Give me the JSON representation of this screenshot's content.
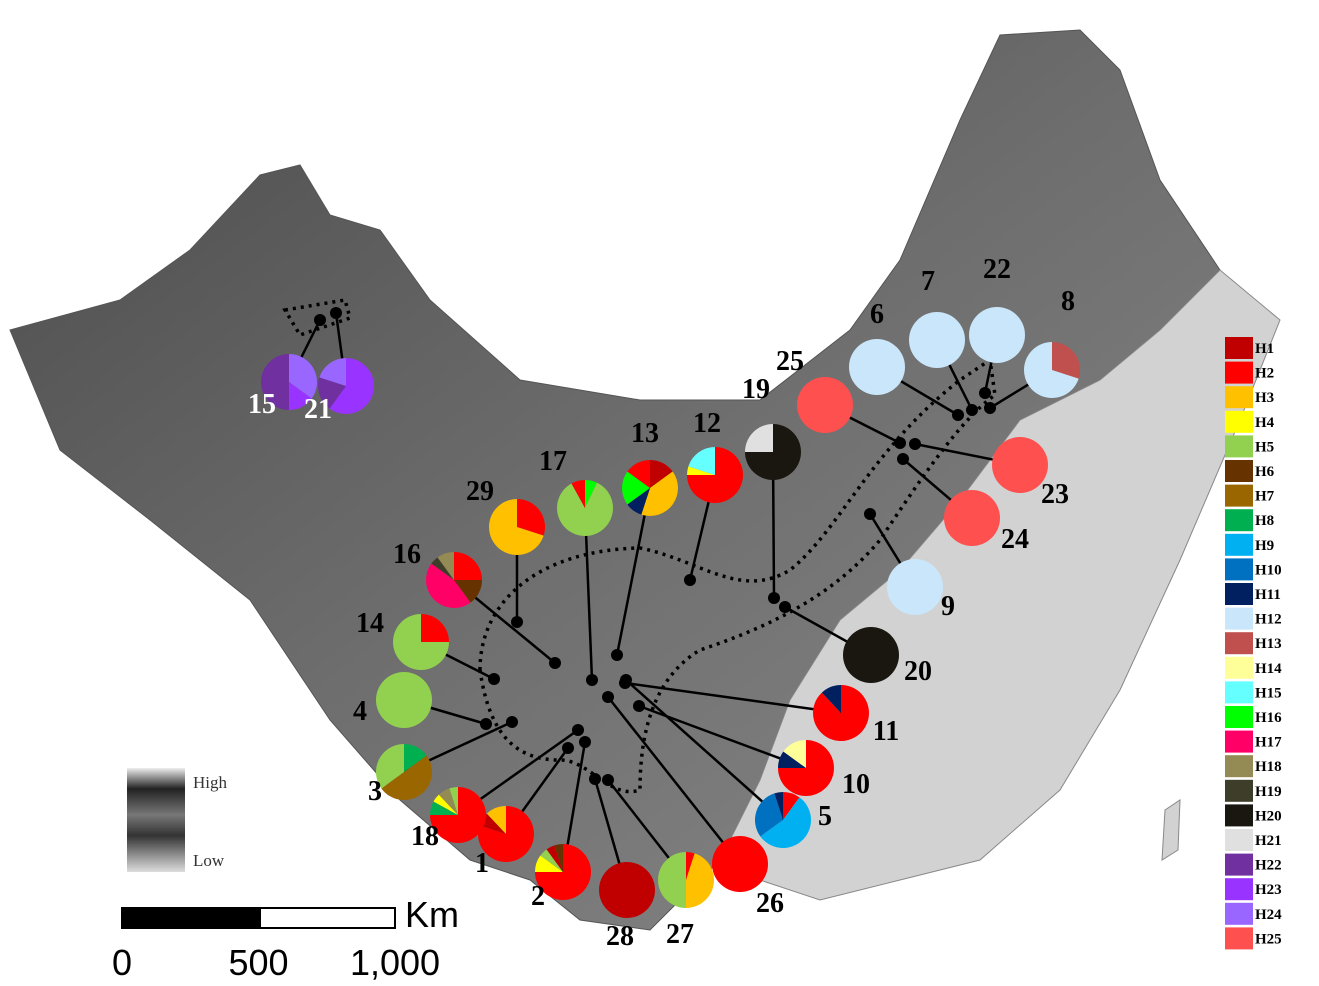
{
  "legend": [
    {
      "label": "H1",
      "color": "#c00000"
    },
    {
      "label": "H2",
      "color": "#ff0000"
    },
    {
      "label": "H3",
      "color": "#ffc000"
    },
    {
      "label": "H4",
      "color": "#ffff00"
    },
    {
      "label": "H5",
      "color": "#92d050"
    },
    {
      "label": "H6",
      "color": "#663300"
    },
    {
      "label": "H7",
      "color": "#996600"
    },
    {
      "label": "H8",
      "color": "#00b050"
    },
    {
      "label": "H9",
      "color": "#00b0f0"
    },
    {
      "label": "H10",
      "color": "#0070c0"
    },
    {
      "label": "H11",
      "color": "#002060"
    },
    {
      "label": "H12",
      "color": "#c9e6fa"
    },
    {
      "label": "H13",
      "color": "#c0504d"
    },
    {
      "label": "H14",
      "color": "#ffff99"
    },
    {
      "label": "H15",
      "color": "#66ffff"
    },
    {
      "label": "H16",
      "color": "#00ff00"
    },
    {
      "label": "H17",
      "color": "#ff0066"
    },
    {
      "label": "H18",
      "color": "#948a54"
    },
    {
      "label": "H19",
      "color": "#3d3d29"
    },
    {
      "label": "H20",
      "color": "#1a1711"
    },
    {
      "label": "H21",
      "color": "#e0e0e0"
    },
    {
      "label": "H22",
      "color": "#7030a0"
    },
    {
      "label": "H23",
      "color": "#9933ff"
    },
    {
      "label": "H24",
      "color": "#9966ff"
    },
    {
      "label": "H25",
      "color": "#ff5050"
    }
  ],
  "populations": [
    {
      "label": "1",
      "segments": [
        {
          "haplotype": "H2",
          "share": 80
        },
        {
          "haplotype": "H1",
          "share": 8
        },
        {
          "haplotype": "H3",
          "share": 12
        }
      ]
    },
    {
      "label": "2",
      "segments": [
        {
          "haplotype": "H2",
          "share": 75
        },
        {
          "haplotype": "H4",
          "share": 10
        },
        {
          "haplotype": "H5",
          "share": 5
        },
        {
          "haplotype": "H1",
          "share": 5
        },
        {
          "haplotype": "H6",
          "share": 5
        }
      ]
    },
    {
      "label": "3",
      "segments": [
        {
          "haplotype": "H8",
          "share": 15
        },
        {
          "haplotype": "H7",
          "share": 50
        },
        {
          "haplotype": "H5",
          "share": 35
        }
      ]
    },
    {
      "label": "4",
      "segments": [
        {
          "haplotype": "H5",
          "share": 100
        }
      ]
    },
    {
      "label": "5",
      "segments": [
        {
          "haplotype": "H2",
          "share": 10
        },
        {
          "haplotype": "H9",
          "share": 55
        },
        {
          "haplotype": "H10",
          "share": 30
        },
        {
          "haplotype": "H11",
          "share": 5
        }
      ]
    },
    {
      "label": "6",
      "segments": [
        {
          "haplotype": "H12",
          "share": 100
        }
      ]
    },
    {
      "label": "7",
      "segments": [
        {
          "haplotype": "H12",
          "share": 100
        }
      ]
    },
    {
      "label": "8",
      "segments": [
        {
          "haplotype": "H13",
          "share": 30
        },
        {
          "haplotype": "H12",
          "share": 70
        }
      ]
    },
    {
      "label": "9",
      "segments": [
        {
          "haplotype": "H12",
          "share": 100
        }
      ]
    },
    {
      "label": "10",
      "segments": [
        {
          "haplotype": "H2",
          "share": 75
        },
        {
          "haplotype": "H11",
          "share": 10
        },
        {
          "haplotype": "H14",
          "share": 15
        }
      ]
    },
    {
      "label": "11",
      "segments": [
        {
          "haplotype": "H2",
          "share": 88
        },
        {
          "haplotype": "H11",
          "share": 12
        }
      ]
    },
    {
      "label": "12",
      "segments": [
        {
          "haplotype": "H2",
          "share": 75
        },
        {
          "haplotype": "H4",
          "share": 5
        },
        {
          "haplotype": "H15",
          "share": 20
        }
      ]
    },
    {
      "label": "13",
      "segments": [
        {
          "haplotype": "H1",
          "share": 15
        },
        {
          "haplotype": "H3",
          "share": 40
        },
        {
          "haplotype": "H11",
          "share": 10
        },
        {
          "haplotype": "H16",
          "share": 20
        },
        {
          "haplotype": "H2",
          "share": 15
        }
      ]
    },
    {
      "label": "14",
      "segments": [
        {
          "haplotype": "H2",
          "share": 25
        },
        {
          "haplotype": "H5",
          "share": 75
        }
      ]
    },
    {
      "label": "15",
      "segments": [
        {
          "haplotype": "H24",
          "share": 35
        },
        {
          "haplotype": "H23",
          "share": 15
        },
        {
          "haplotype": "H22",
          "share": 50
        }
      ]
    },
    {
      "label": "16",
      "segments": [
        {
          "haplotype": "H2",
          "share": 25
        },
        {
          "haplotype": "H6",
          "share": 15
        },
        {
          "haplotype": "H17",
          "share": 45
        },
        {
          "haplotype": "H19",
          "share": 5
        },
        {
          "haplotype": "H18",
          "share": 10
        }
      ]
    },
    {
      "label": "17",
      "segments": [
        {
          "haplotype": "H16",
          "share": 7
        },
        {
          "haplotype": "H5",
          "share": 85
        },
        {
          "haplotype": "H2",
          "share": 8
        }
      ]
    },
    {
      "label": "18",
      "segments": [
        {
          "haplotype": "H2",
          "share": 75
        },
        {
          "haplotype": "H8",
          "share": 8
        },
        {
          "haplotype": "H4",
          "share": 5
        },
        {
          "haplotype": "H18",
          "share": 7
        },
        {
          "haplotype": "H5",
          "share": 5
        }
      ]
    },
    {
      "label": "19",
      "segments": [
        {
          "haplotype": "H20",
          "share": 75
        },
        {
          "haplotype": "H21",
          "share": 25
        }
      ]
    },
    {
      "label": "20",
      "segments": [
        {
          "haplotype": "H20",
          "share": 100
        }
      ]
    },
    {
      "label": "21",
      "segments": [
        {
          "haplotype": "H23",
          "share": 60
        },
        {
          "haplotype": "H22",
          "share": 20
        },
        {
          "haplotype": "H24",
          "share": 20
        }
      ]
    },
    {
      "label": "22",
      "segments": [
        {
          "haplotype": "H12",
          "share": 100
        }
      ]
    },
    {
      "label": "23",
      "segments": [
        {
          "haplotype": "H25",
          "share": 100
        }
      ]
    },
    {
      "label": "24",
      "segments": [
        {
          "haplotype": "H25",
          "share": 100
        }
      ]
    },
    {
      "label": "25",
      "segments": [
        {
          "haplotype": "H25",
          "share": 100
        }
      ]
    },
    {
      "label": "26",
      "segments": [
        {
          "haplotype": "H2",
          "share": 100
        }
      ]
    },
    {
      "label": "27",
      "segments": [
        {
          "haplotype": "H2",
          "share": 5
        },
        {
          "haplotype": "H3",
          "share": 45
        },
        {
          "haplotype": "H5",
          "share": 50
        }
      ]
    },
    {
      "label": "28",
      "segments": [
        {
          "haplotype": "H1",
          "share": 100
        }
      ]
    },
    {
      "label": "29",
      "segments": [
        {
          "haplotype": "H2",
          "share": 30
        },
        {
          "haplotype": "H3",
          "share": 70
        }
      ]
    }
  ],
  "scale_bar": {
    "unit": "Km",
    "ticks": [
      0,
      500,
      {
        "value": 1000,
        "label": "1,000"
      }
    ]
  },
  "elevation_legend": {
    "high": "High",
    "low": "Low"
  }
}
